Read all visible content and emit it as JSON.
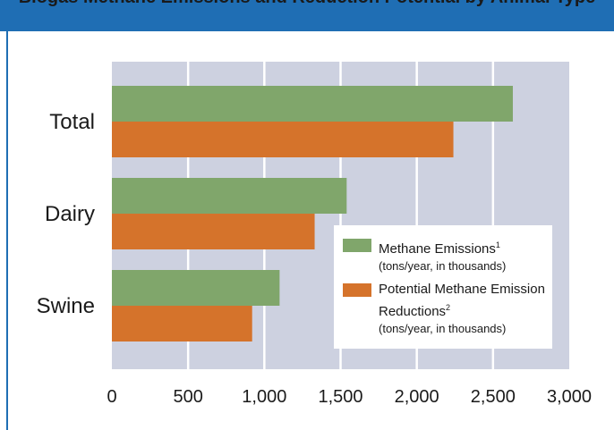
{
  "header": {
    "title": "Biogas Methane Emissions and Reduction Potential by Animal Type",
    "color": "#1f6eb4"
  },
  "chart_data": {
    "type": "bar",
    "orientation": "horizontal",
    "categories": [
      "Total",
      "Dairy",
      "Swine"
    ],
    "series": [
      {
        "name": "Methane Emissions",
        "superscript": "1",
        "note": "(tons/year, in thousands)",
        "color": "#80a66b",
        "values": [
          2630,
          1540,
          1100
        ]
      },
      {
        "name": "Potential Methane Emission Reductions",
        "superscript": "2",
        "note": "(tons/year, in thousands)",
        "color": "#d5732b",
        "values": [
          2240,
          1330,
          920
        ]
      }
    ],
    "xlim": [
      0,
      3000
    ],
    "xticks": [
      "0",
      "500",
      "1,000",
      "1,500",
      "2,000",
      "2,500",
      "3,000"
    ],
    "grid": true,
    "legend_position": "bottom-right",
    "plot_background": "#cdd1e0"
  }
}
